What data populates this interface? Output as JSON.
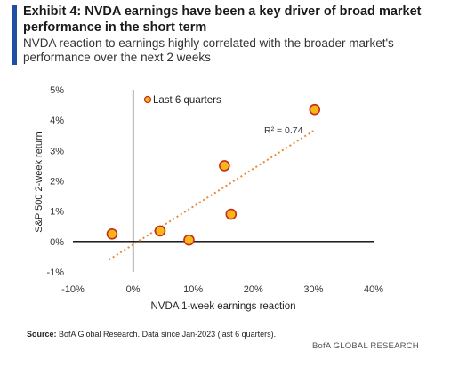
{
  "header": {
    "title": "Exhibit 4: NVDA earnings have been a key driver of broad market performance in the short term",
    "subtitle": "NVDA reaction to earnings highly correlated with the broader market's performance over the next 2 weeks"
  },
  "chart_data": {
    "type": "scatter",
    "xlabel": "NVDA 1-week earnings reaction",
    "ylabel": "S&P 500 2-week return",
    "xlim": [
      -10,
      40
    ],
    "ylim": [
      -1,
      5
    ],
    "x_ticks": [
      "-10%",
      "0%",
      "10%",
      "20%",
      "30%",
      "40%"
    ],
    "y_ticks": [
      "-1%",
      "0%",
      "1%",
      "2%",
      "3%",
      "4%",
      "5%"
    ],
    "series": [
      {
        "name": "Last 6 quarters",
        "points": [
          {
            "x": -3.5,
            "y": 0.25
          },
          {
            "x": 4.5,
            "y": 0.35
          },
          {
            "x": 9.3,
            "y": 0.05
          },
          {
            "x": 15.2,
            "y": 2.5
          },
          {
            "x": 16.3,
            "y": 0.9
          },
          {
            "x": 30.2,
            "y": 4.35
          }
        ]
      }
    ],
    "trendline": {
      "x": [
        -4,
        30
      ],
      "y": [
        -0.6,
        3.65
      ],
      "label": "R² = 0.74"
    },
    "legend_position": "top-left",
    "colors": {
      "marker_fill": "#f7b718",
      "marker_edge": "#c62a1a",
      "trend": "#e58a35",
      "axis": "#000000",
      "zero_line": "#000000"
    }
  },
  "footer": {
    "source_label": "Source:",
    "source_text": " BofA Global Research. Data since Jan-2023 (last 6 quarters).",
    "brand": "BofA GLOBAL RESEARCH"
  }
}
